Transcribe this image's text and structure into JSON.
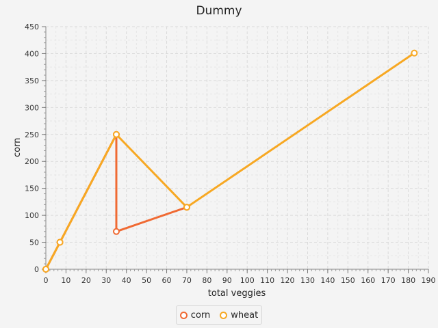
{
  "chart_data": {
    "type": "line",
    "title": "Dummy",
    "xlabel": "total veggies",
    "ylabel": "corn",
    "xlim": [
      0,
      190
    ],
    "ylim": [
      0,
      450
    ],
    "x_ticks": [
      0,
      10,
      20,
      30,
      40,
      50,
      60,
      70,
      80,
      90,
      100,
      110,
      120,
      130,
      140,
      150,
      160,
      170,
      180,
      190
    ],
    "y_ticks": [
      0,
      50,
      100,
      150,
      200,
      250,
      300,
      350,
      400,
      450
    ],
    "grid": true,
    "legend_position": "bottom",
    "series": [
      {
        "name": "corn",
        "color": "#f06a33",
        "points": [
          [
            0,
            0
          ],
          [
            7,
            50
          ],
          [
            35,
            250
          ],
          [
            35,
            70
          ],
          [
            70,
            115
          ]
        ]
      },
      {
        "name": "wheat",
        "color": "#f7a823",
        "points": [
          [
            0,
            0
          ],
          [
            7,
            50
          ],
          [
            35,
            250
          ],
          [
            70,
            115
          ],
          [
            183,
            401
          ]
        ]
      }
    ]
  }
}
